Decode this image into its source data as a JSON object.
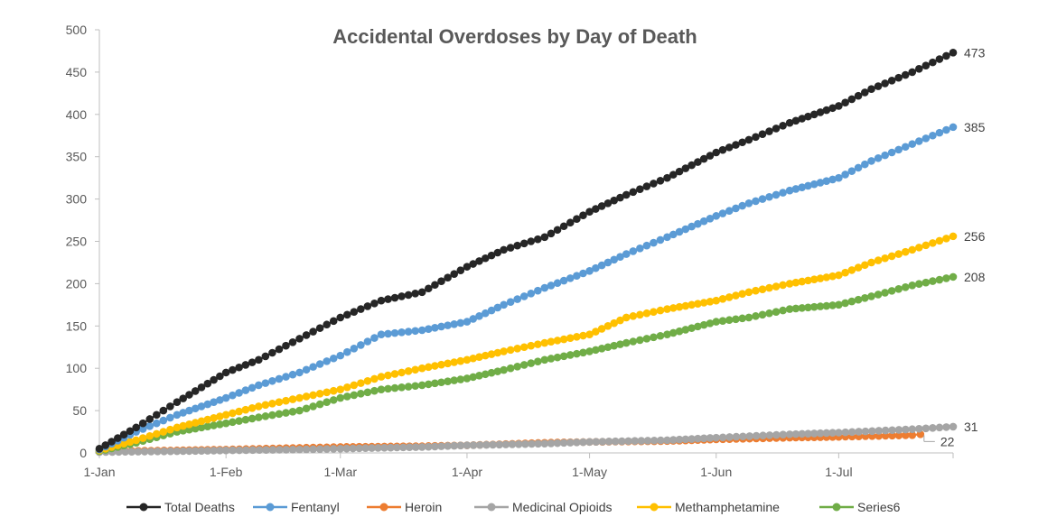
{
  "chart_data": {
    "type": "line",
    "title": "Accidental Overdoses by Day of Death",
    "xlabel": "",
    "ylabel": "",
    "ylim": [
      0,
      500
    ],
    "yticks": [
      0,
      50,
      100,
      150,
      200,
      250,
      300,
      350,
      400,
      450,
      500
    ],
    "xlim": [
      1,
      210
    ],
    "xticks": [
      {
        "label": "1-Jan",
        "day": 1
      },
      {
        "label": "1-Feb",
        "day": 32
      },
      {
        "label": "1-Mar",
        "day": 60
      },
      {
        "label": "1-Apr",
        "day": 91
      },
      {
        "label": "1-May",
        "day": 121
      },
      {
        "label": "1-Jun",
        "day": 152
      },
      {
        "label": "1-Jul",
        "day": 182
      }
    ],
    "legend_position": "bottom",
    "series": [
      {
        "name": "Total Deaths",
        "color": "#262626",
        "end_label": "473",
        "points": [
          [
            1,
            5
          ],
          [
            10,
            30
          ],
          [
            20,
            60
          ],
          [
            32,
            95
          ],
          [
            40,
            110
          ],
          [
            50,
            135
          ],
          [
            60,
            160
          ],
          [
            70,
            180
          ],
          [
            80,
            190
          ],
          [
            91,
            220
          ],
          [
            100,
            240
          ],
          [
            110,
            255
          ],
          [
            121,
            285
          ],
          [
            130,
            305
          ],
          [
            140,
            325
          ],
          [
            152,
            355
          ],
          [
            160,
            370
          ],
          [
            170,
            390
          ],
          [
            182,
            410
          ],
          [
            190,
            430
          ],
          [
            200,
            450
          ],
          [
            210,
            473
          ]
        ]
      },
      {
        "name": "Fentanyl",
        "color": "#5B9BD5",
        "end_label": "385",
        "points": [
          [
            1,
            4
          ],
          [
            10,
            25
          ],
          [
            20,
            45
          ],
          [
            32,
            65
          ],
          [
            40,
            80
          ],
          [
            50,
            95
          ],
          [
            60,
            115
          ],
          [
            70,
            140
          ],
          [
            80,
            145
          ],
          [
            91,
            155
          ],
          [
            100,
            175
          ],
          [
            110,
            195
          ],
          [
            121,
            215
          ],
          [
            130,
            235
          ],
          [
            140,
            255
          ],
          [
            152,
            280
          ],
          [
            160,
            295
          ],
          [
            170,
            310
          ],
          [
            182,
            325
          ],
          [
            190,
            345
          ],
          [
            200,
            365
          ],
          [
            210,
            385
          ]
        ]
      },
      {
        "name": "Heroin",
        "color": "#ED7D31",
        "end_label": "22",
        "points": [
          [
            1,
            2
          ],
          [
            20,
            3
          ],
          [
            32,
            4
          ],
          [
            50,
            6
          ],
          [
            60,
            7
          ],
          [
            80,
            8
          ],
          [
            91,
            9
          ],
          [
            110,
            12
          ],
          [
            121,
            13
          ],
          [
            140,
            14
          ],
          [
            152,
            16
          ],
          [
            170,
            18
          ],
          [
            182,
            19
          ],
          [
            200,
            21
          ],
          [
            202,
            22
          ]
        ]
      },
      {
        "name": "Medicinal Opioids",
        "color": "#A5A5A5",
        "end_label": "31",
        "points": [
          [
            1,
            1
          ],
          [
            20,
            2
          ],
          [
            32,
            3
          ],
          [
            50,
            4
          ],
          [
            60,
            5
          ],
          [
            80,
            7
          ],
          [
            91,
            9
          ],
          [
            110,
            11
          ],
          [
            121,
            13
          ],
          [
            140,
            15
          ],
          [
            152,
            18
          ],
          [
            170,
            22
          ],
          [
            182,
            24
          ],
          [
            200,
            28
          ],
          [
            210,
            31
          ]
        ]
      },
      {
        "name": "Methamphetamine",
        "color": "#FFC000",
        "end_label": "256",
        "points": [
          [
            1,
            3
          ],
          [
            10,
            15
          ],
          [
            20,
            30
          ],
          [
            32,
            45
          ],
          [
            40,
            55
          ],
          [
            50,
            65
          ],
          [
            60,
            75
          ],
          [
            70,
            90
          ],
          [
            80,
            100
          ],
          [
            91,
            110
          ],
          [
            100,
            120
          ],
          [
            110,
            130
          ],
          [
            121,
            140
          ],
          [
            130,
            160
          ],
          [
            140,
            170
          ],
          [
            152,
            180
          ],
          [
            160,
            190
          ],
          [
            170,
            200
          ],
          [
            182,
            210
          ],
          [
            190,
            225
          ],
          [
            200,
            240
          ],
          [
            210,
            256
          ]
        ]
      },
      {
        "name": "Series6",
        "color": "#70AD47",
        "end_label": "208",
        "points": [
          [
            1,
            2
          ],
          [
            10,
            12
          ],
          [
            20,
            25
          ],
          [
            32,
            35
          ],
          [
            40,
            42
          ],
          [
            50,
            50
          ],
          [
            60,
            65
          ],
          [
            70,
            75
          ],
          [
            80,
            80
          ],
          [
            91,
            88
          ],
          [
            100,
            98
          ],
          [
            110,
            110
          ],
          [
            121,
            120
          ],
          [
            130,
            130
          ],
          [
            140,
            140
          ],
          [
            152,
            155
          ],
          [
            160,
            160
          ],
          [
            170,
            170
          ],
          [
            182,
            175
          ],
          [
            190,
            185
          ],
          [
            200,
            198
          ],
          [
            210,
            208
          ]
        ]
      }
    ]
  }
}
